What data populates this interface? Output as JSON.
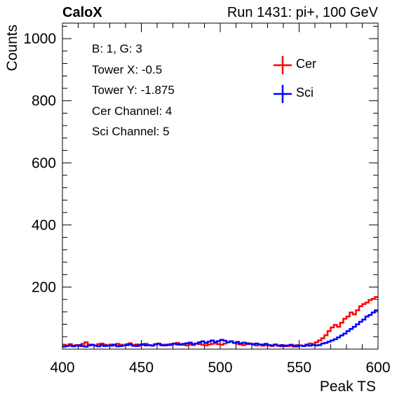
{
  "header": {
    "left": "CaloX",
    "right": "Run 1431: pi+, 100 GeV"
  },
  "info_box": [
    "B: 1, G: 3",
    "Tower X: -0.5",
    "Tower Y: -1.875",
    "Cer Channel: 4",
    "Sci Channel: 5"
  ],
  "chart_data": {
    "type": "line",
    "style": "step histogram",
    "xlabel": "Peak TS",
    "ylabel": "Counts",
    "xlim": [
      400,
      600
    ],
    "ylim": [
      0,
      1050
    ],
    "x_ticks": [
      400,
      450,
      500,
      550,
      600
    ],
    "y_ticks": [
      200,
      400,
      600,
      800,
      1000
    ],
    "legend_position": "top-right",
    "grid": false,
    "bin_width": 2,
    "x": [
      400,
      402,
      404,
      406,
      408,
      410,
      412,
      414,
      416,
      418,
      420,
      422,
      424,
      426,
      428,
      430,
      432,
      434,
      436,
      438,
      440,
      442,
      444,
      446,
      448,
      450,
      452,
      454,
      456,
      458,
      460,
      462,
      464,
      466,
      468,
      470,
      472,
      474,
      476,
      478,
      480,
      482,
      484,
      486,
      488,
      490,
      492,
      494,
      496,
      498,
      500,
      502,
      504,
      506,
      508,
      510,
      512,
      514,
      516,
      518,
      520,
      522,
      524,
      526,
      528,
      530,
      532,
      534,
      536,
      538,
      540,
      542,
      544,
      546,
      548,
      550,
      552,
      554,
      556,
      558,
      560,
      562,
      564,
      566,
      568,
      570,
      572,
      574,
      576,
      578,
      580,
      582,
      584,
      586,
      588,
      590,
      592,
      594,
      596,
      598
    ],
    "series": [
      {
        "name": "Cer",
        "color": "#ff0000",
        "values": [
          14,
          12,
          16,
          11,
          13,
          10,
          17,
          22,
          15,
          13,
          12,
          16,
          18,
          14,
          11,
          15,
          13,
          17,
          14,
          12,
          16,
          19,
          13,
          15,
          11,
          14,
          17,
          13,
          12,
          16,
          18,
          12,
          14,
          15,
          13,
          17,
          20,
          16,
          14,
          12,
          15,
          13,
          18,
          16,
          14,
          12,
          15,
          17,
          19,
          16,
          14,
          18,
          22,
          25,
          20,
          17,
          15,
          13,
          16,
          18,
          14,
          12,
          15,
          11,
          13,
          12,
          10,
          14,
          11,
          9,
          12,
          10,
          11,
          8,
          13,
          12,
          10,
          15,
          18,
          16,
          22,
          28,
          35,
          45,
          58,
          70,
          78,
          72,
          85,
          98,
          105,
          118,
          112,
          125,
          138,
          145,
          150,
          158,
          162,
          168
        ]
      },
      {
        "name": "Sci",
        "color": "#0000ff",
        "values": [
          8,
          10,
          12,
          9,
          11,
          13,
          10,
          8,
          12,
          14,
          11,
          9,
          13,
          10,
          12,
          11,
          14,
          9,
          10,
          12,
          13,
          15,
          11,
          10,
          14,
          16,
          12,
          13,
          11,
          15,
          17,
          14,
          12,
          13,
          16,
          18,
          15,
          14,
          17,
          19,
          21,
          16,
          18,
          22,
          25,
          20,
          24,
          28,
          23,
          26,
          30,
          27,
          22,
          25,
          20,
          23,
          18,
          21,
          19,
          17,
          16,
          18,
          15,
          14,
          17,
          13,
          12,
          15,
          11,
          13,
          10,
          12,
          14,
          11,
          9,
          12,
          10,
          13,
          11,
          14,
          12,
          13,
          18,
          20,
          24,
          28,
          32,
          38,
          44,
          50,
          58,
          65,
          72,
          80,
          88,
          95,
          105,
          110,
          118,
          125
        ]
      }
    ]
  }
}
